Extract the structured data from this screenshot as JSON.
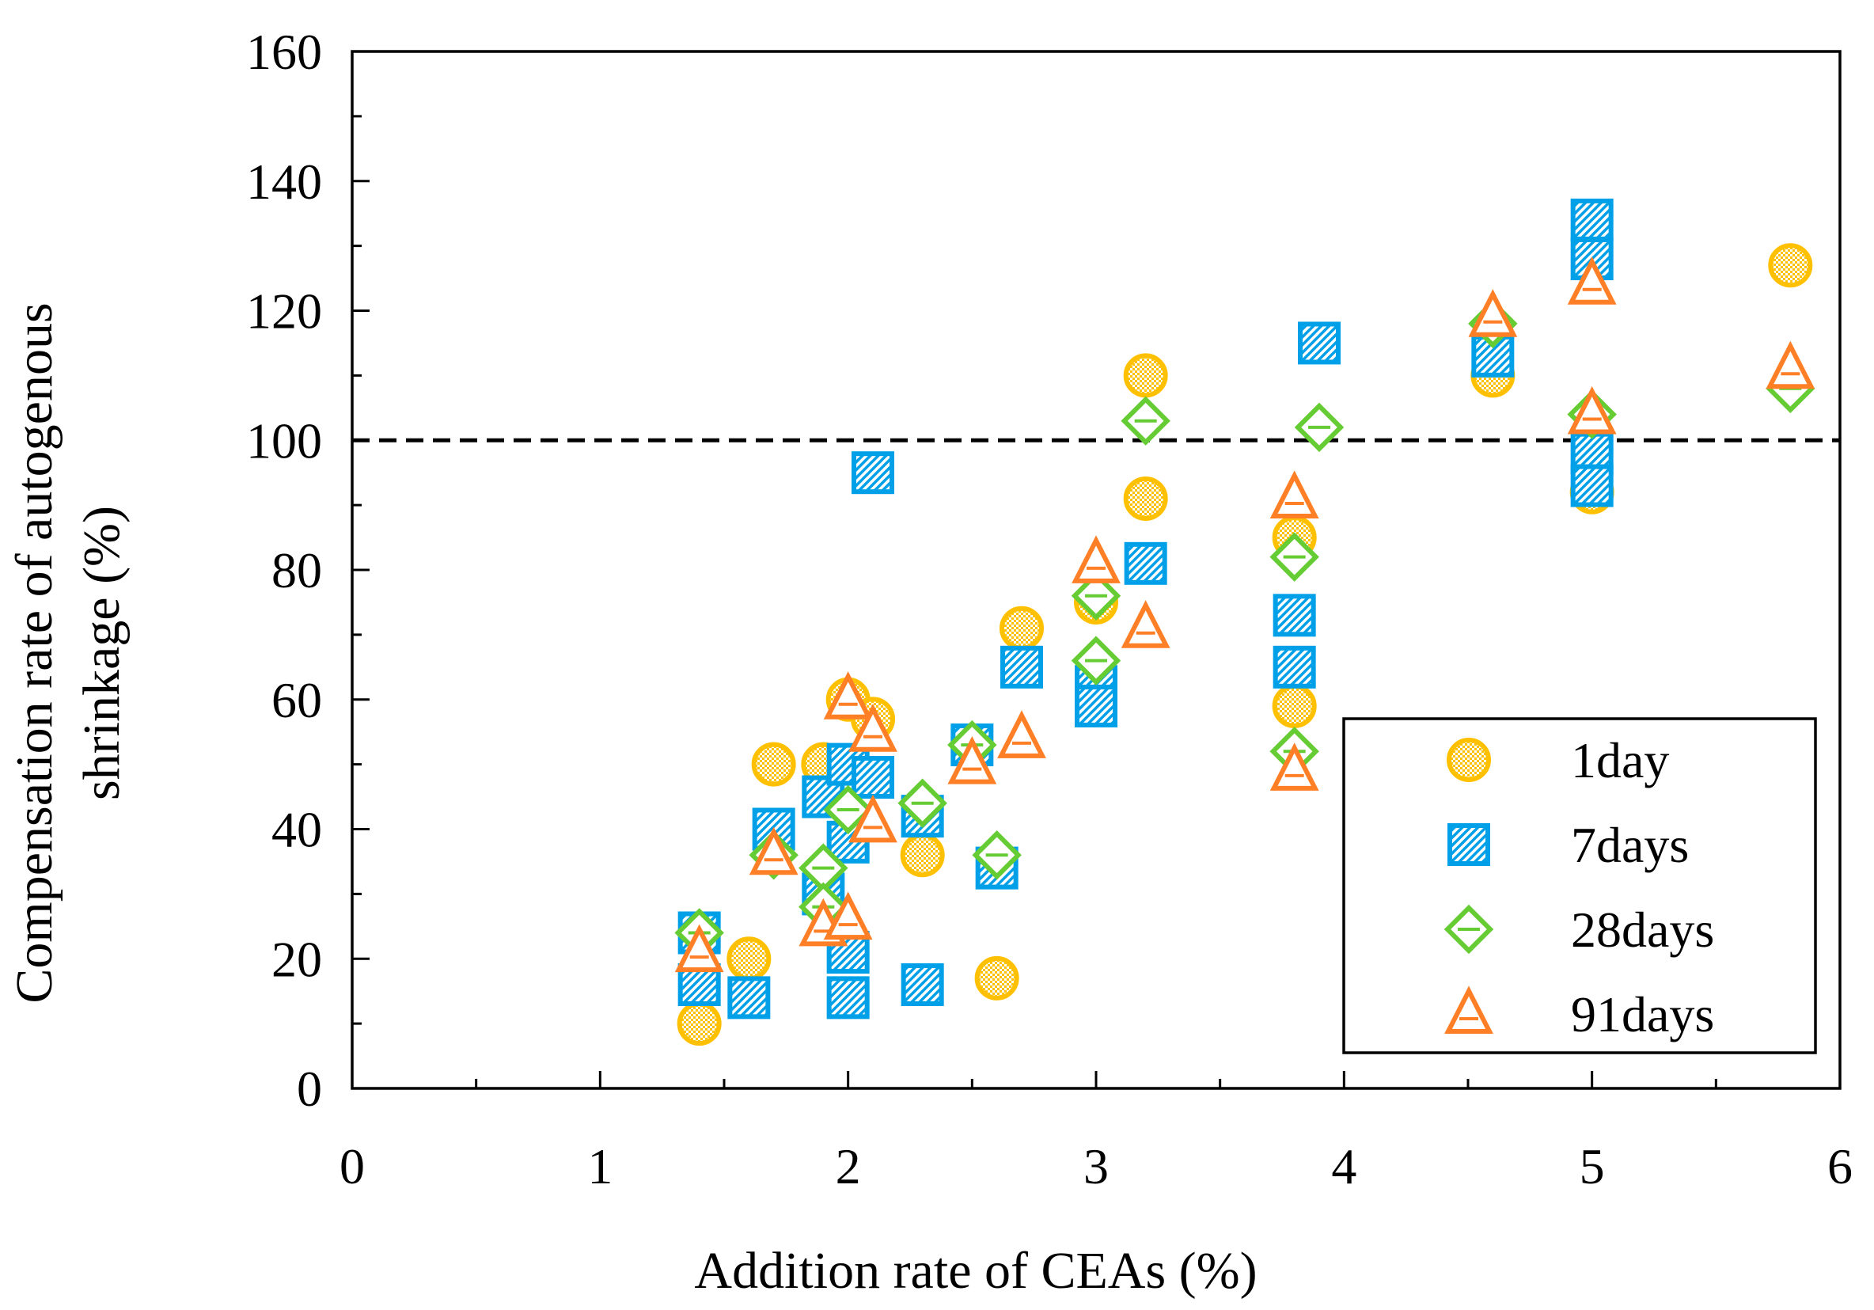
{
  "chart_data": {
    "type": "scatter",
    "title": "",
    "xlabel": "Addition rate of CEAs (%)",
    "ylabel_lines": [
      "Compensation rate of autogenous",
      "shrinkage (%)"
    ],
    "xlim": [
      0,
      6
    ],
    "ylim": [
      0,
      160
    ],
    "xticks": [
      0,
      1,
      2,
      3,
      4,
      5,
      6
    ],
    "yticks": [
      0,
      20,
      40,
      60,
      80,
      100,
      120,
      140,
      160
    ],
    "x_minor_step": 0.5,
    "y_minor_step": 10,
    "grid": false,
    "legend_position": "bottom-right",
    "reference_line": {
      "y": 100,
      "style": "dashed",
      "color": "#000000"
    },
    "series": [
      {
        "name": "1day",
        "marker": "circle",
        "color": "#FFC000",
        "points": [
          [
            1.4,
            10
          ],
          [
            1.6,
            20
          ],
          [
            1.7,
            50
          ],
          [
            1.9,
            50
          ],
          [
            2.0,
            60
          ],
          [
            2.1,
            57
          ],
          [
            2.3,
            36
          ],
          [
            2.6,
            17
          ],
          [
            2.7,
            71
          ],
          [
            3.0,
            75
          ],
          [
            3.2,
            110
          ],
          [
            3.2,
            91
          ],
          [
            3.8,
            85
          ],
          [
            3.8,
            59
          ],
          [
            4.6,
            110
          ],
          [
            5.0,
            92
          ],
          [
            5.8,
            127
          ]
        ]
      },
      {
        "name": "7days",
        "marker": "square",
        "color": "#00A0E8",
        "points": [
          [
            1.4,
            24
          ],
          [
            1.4,
            16
          ],
          [
            1.6,
            14
          ],
          [
            1.7,
            40
          ],
          [
            1.9,
            45
          ],
          [
            1.9,
            30
          ],
          [
            2.0,
            50
          ],
          [
            2.0,
            38
          ],
          [
            2.0,
            21
          ],
          [
            2.0,
            14
          ],
          [
            2.1,
            95
          ],
          [
            2.1,
            48
          ],
          [
            2.3,
            42
          ],
          [
            2.3,
            16
          ],
          [
            2.5,
            53
          ],
          [
            2.6,
            34
          ],
          [
            2.7,
            65
          ],
          [
            3.0,
            62
          ],
          [
            3.0,
            59
          ],
          [
            3.2,
            81
          ],
          [
            3.8,
            73
          ],
          [
            3.8,
            65
          ],
          [
            3.9,
            115
          ],
          [
            4.6,
            113
          ],
          [
            5.0,
            134
          ],
          [
            5.0,
            128
          ],
          [
            5.0,
            98
          ],
          [
            5.0,
            93
          ]
        ]
      },
      {
        "name": "28days",
        "marker": "diamond",
        "color": "#66CC33",
        "points": [
          [
            1.4,
            24
          ],
          [
            1.7,
            36
          ],
          [
            1.9,
            34
          ],
          [
            1.9,
            28
          ],
          [
            2.0,
            43
          ],
          [
            2.3,
            44
          ],
          [
            2.5,
            53
          ],
          [
            2.6,
            36
          ],
          [
            3.0,
            76
          ],
          [
            3.0,
            66
          ],
          [
            3.2,
            103
          ],
          [
            3.8,
            82
          ],
          [
            3.8,
            52
          ],
          [
            3.9,
            102
          ],
          [
            4.6,
            118
          ],
          [
            5.0,
            104
          ],
          [
            5.8,
            108
          ]
        ]
      },
      {
        "name": "91days",
        "marker": "triangle",
        "color": "#FF7F27",
        "points": [
          [
            1.4,
            21
          ],
          [
            1.7,
            36
          ],
          [
            1.9,
            25
          ],
          [
            2.0,
            60
          ],
          [
            2.0,
            26
          ],
          [
            2.1,
            55
          ],
          [
            2.1,
            41
          ],
          [
            2.5,
            50
          ],
          [
            2.7,
            54
          ],
          [
            3.0,
            81
          ],
          [
            3.2,
            71
          ],
          [
            3.8,
            91
          ],
          [
            3.8,
            49
          ],
          [
            4.6,
            119
          ],
          [
            5.0,
            124
          ],
          [
            5.0,
            104
          ],
          [
            5.8,
            111
          ]
        ]
      }
    ]
  }
}
